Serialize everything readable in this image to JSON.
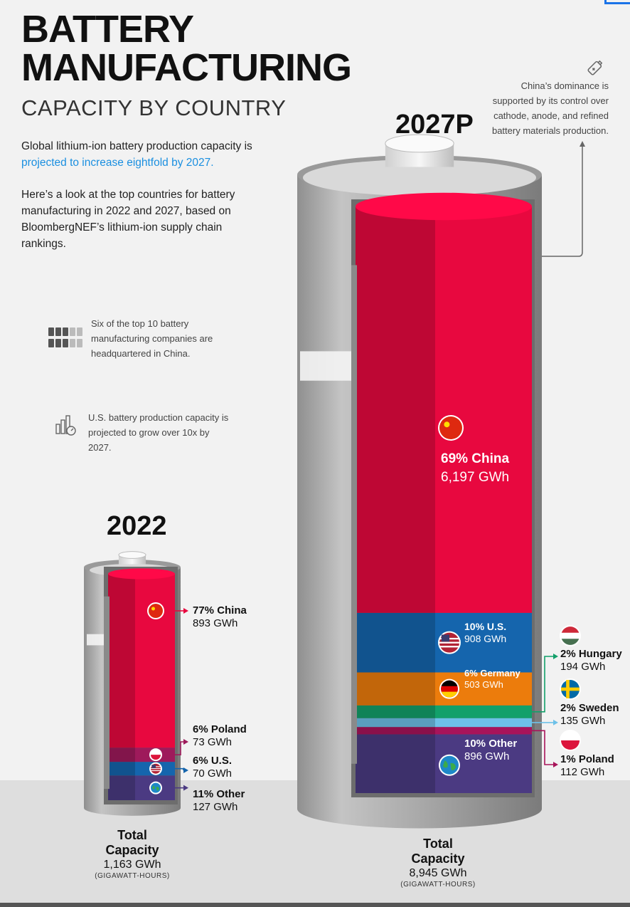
{
  "header": {
    "title_line1": "BATTERY",
    "title_line2": "MANUFACTURING",
    "subtitle": "CAPACITY BY COUNTRY"
  },
  "intro": {
    "p1_pre": "Global lithium-ion battery production capacity is ",
    "p1_highlight": "projected to increase eightfold by 2027.",
    "p2": "Here’s a look at the top countries for battery manufacturing in 2022 and 2027, based on BloombergNEF’s lithium-ion supply chain rankings."
  },
  "notes": {
    "companies": "Six of the top 10 battery manufacturing companies are headquartered in China.",
    "us": "U.S. battery production capacity is projected to grow over 10x by 2027.",
    "china": "China’s dominance is supported by its control over cathode, anode, and refined battery materials production."
  },
  "icons": {
    "companies": "battery-grid-icon",
    "us": "bar-chart-growth-icon",
    "china": "battery-icon"
  },
  "colors": {
    "China": "#e8083f",
    "Poland": "#9e1a5b",
    "U.S.": "#1565ad",
    "Other": "#4b3a82",
    "Germany": "#ec7c0c",
    "Hungary": "#13a06a",
    "Sweden": "#6ec1e8",
    "Poland2027": "#a8145a"
  },
  "chart_data": [
    {
      "type": "bar",
      "title": "2022",
      "unit": "GWh",
      "series": [
        {
          "name": "China",
          "percent": 77,
          "value": 893
        },
        {
          "name": "Poland",
          "percent": 6,
          "value": 73
        },
        {
          "name": "U.S.",
          "percent": 6,
          "value": 70
        },
        {
          "name": "Other",
          "percent": 11,
          "value": 127
        }
      ],
      "total_label": "Total Capacity",
      "total": "1,163 GWh",
      "total_unit": "(GIGAWATT-HOURS)"
    },
    {
      "type": "bar",
      "title": "2027P",
      "unit": "GWh",
      "series": [
        {
          "name": "China",
          "percent": 69,
          "value": 6197
        },
        {
          "name": "U.S.",
          "percent": 10,
          "value": 908
        },
        {
          "name": "Germany",
          "percent": 6,
          "value": 503
        },
        {
          "name": "Hungary",
          "percent": 2,
          "value": 194
        },
        {
          "name": "Sweden",
          "percent": 2,
          "value": 135
        },
        {
          "name": "Poland",
          "percent": 1,
          "value": 112
        },
        {
          "name": "Other",
          "percent": 10,
          "value": 896
        }
      ],
      "total_label": "Total Capacity",
      "total": "8,945 GWh",
      "total_unit": "(GIGAWATT-HOURS)"
    }
  ],
  "labels2022": {
    "china": {
      "pct": "77% China",
      "val": "893 GWh"
    },
    "poland": {
      "pct": "6% Poland",
      "val": "73 GWh"
    },
    "us": {
      "pct": "6% U.S.",
      "val": "70 GWh"
    },
    "other": {
      "pct": "11% Other",
      "val": "127 GWh"
    }
  },
  "labels2027": {
    "china": {
      "pct": "69% China",
      "val": "6,197 GWh"
    },
    "us": {
      "pct": "10% U.S.",
      "val": "908 GWh"
    },
    "germany": {
      "pct": "6% Germany",
      "val": "503 GWh"
    },
    "other": {
      "pct": "10% Other",
      "val": "896 GWh"
    },
    "hungary": {
      "pct": "2% Hungary",
      "val": "194 GWh"
    },
    "sweden": {
      "pct": "2% Sweden",
      "val": "135 GWh"
    },
    "poland": {
      "pct": "1% Poland",
      "val": "112 GWh"
    }
  },
  "totals": {
    "y2022": {
      "l1": "Total",
      "l2": "Capacity",
      "val": "1,163 GWh",
      "unit": "(GIGAWATT-HOURS)"
    },
    "y2027": {
      "l1": "Total",
      "l2": "Capacity",
      "val": "8,945 GWh",
      "unit": "(GIGAWATT-HOURS)"
    }
  }
}
